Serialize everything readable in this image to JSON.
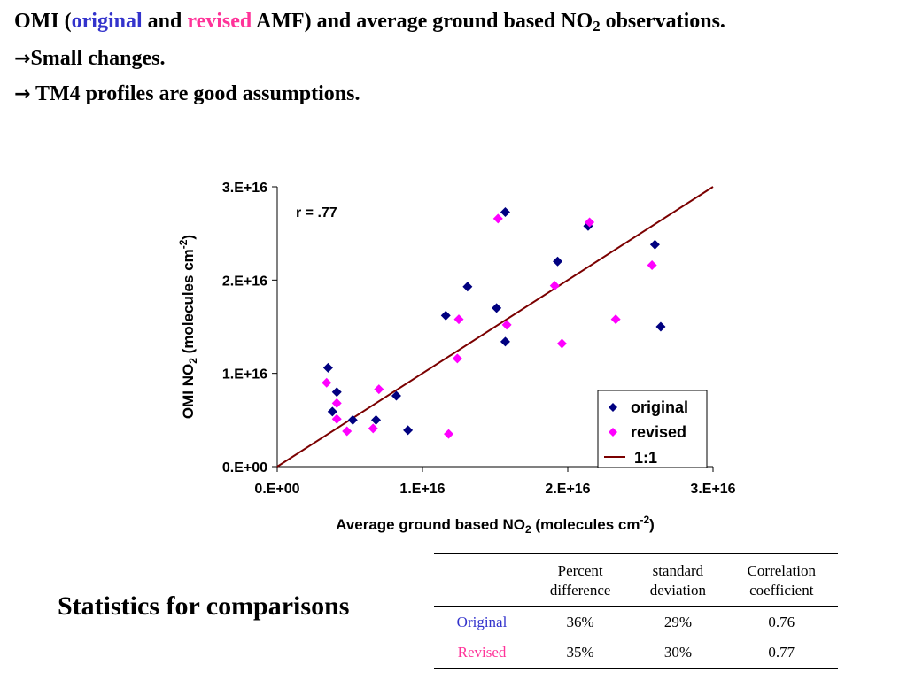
{
  "headline": {
    "line1": {
      "pre": "OMI (",
      "original": "original",
      "and": " and ",
      "revised": "revised",
      "post": " AMF) and average ground based NO",
      "sub": "2",
      "end": " observations."
    },
    "line2": "Small changes.",
    "line3": " TM4 profiles are good assumptions.",
    "arrow": "→",
    "colors": {
      "original": "#3333cc",
      "revised": "#ff3399"
    }
  },
  "chart_data": {
    "type": "scatter",
    "annotation": "r = .77",
    "xlim": [
      0,
      3e+16
    ],
    "ylim": [
      0,
      3e+16
    ],
    "x_ticks": [
      "0.E+00",
      "1.E+16",
      "2.E+16",
      "3.E+16"
    ],
    "y_ticks": [
      "0.E+00",
      "1.E+16",
      "2.E+16",
      "3.E+16"
    ],
    "xlabel": {
      "pre": "Average ground based NO",
      "sub": "2",
      "mid": " (molecules cm",
      "sup": "-2",
      "end": ")"
    },
    "ylabel": {
      "pre": "OMI NO",
      "sub": "2",
      "mid": " (molecules cm",
      "sup": "-2",
      "end": ")"
    },
    "legend_position": "bottom-right",
    "series": [
      {
        "name": "original",
        "color": "#000080",
        "marker": "diamond",
        "points": [
          [
            3500000000000000.0,
            1.06e+16
          ],
          [
            3800000000000000.0,
            5900000000000000.0
          ],
          [
            4100000000000000.0,
            8000000000000000.0
          ],
          [
            5200000000000000.0,
            5000000000000000.0
          ],
          [
            6800000000000000.0,
            5000000000000000.0
          ],
          [
            8200000000000000.0,
            7600000000000000.0
          ],
          [
            9000000000000000.0,
            3900000000000000.0
          ],
          [
            1.16e+16,
            1.62e+16
          ],
          [
            1.31e+16,
            1.93e+16
          ],
          [
            1.51e+16,
            1.7e+16
          ],
          [
            1.57e+16,
            2.73e+16
          ],
          [
            1.57e+16,
            1.34e+16
          ],
          [
            1.93e+16,
            2.2e+16
          ],
          [
            2.14e+16,
            2.58e+16
          ],
          [
            2.6e+16,
            2.38e+16
          ],
          [
            2.64e+16,
            1.5e+16
          ]
        ]
      },
      {
        "name": "revised",
        "color": "#ff00ff",
        "marker": "diamond",
        "points": [
          [
            3400000000000000.0,
            9000000000000000.0
          ],
          [
            4100000000000000.0,
            6800000000000000.0
          ],
          [
            4100000000000000.0,
            5100000000000000.0
          ],
          [
            4800000000000000.0,
            3800000000000000.0
          ],
          [
            6600000000000000.0,
            4100000000000000.0
          ],
          [
            7000000000000000.0,
            8300000000000000.0
          ],
          [
            1.18e+16,
            3500000000000000.0
          ],
          [
            1.24e+16,
            1.16e+16
          ],
          [
            1.25e+16,
            1.58e+16
          ],
          [
            1.52e+16,
            2.66e+16
          ],
          [
            1.58e+16,
            1.52e+16
          ],
          [
            1.91e+16,
            1.94e+16
          ],
          [
            1.96e+16,
            1.32e+16
          ],
          [
            2.15e+16,
            2.62e+16
          ],
          [
            2.33e+16,
            1.58e+16
          ],
          [
            2.58e+16,
            2.16e+16
          ]
        ]
      }
    ],
    "reference_line": {
      "name": "1:1",
      "color": "#7b0000",
      "from": [
        0,
        0
      ],
      "to": [
        3e+16,
        3e+16
      ]
    }
  },
  "stats": {
    "title": "Statistics for comparisons",
    "headers": [
      {
        "l1": "",
        "l2": ""
      },
      {
        "l1": "Percent",
        "l2": "difference"
      },
      {
        "l1": "standard",
        "l2": "deviation"
      },
      {
        "l1": "Correlation",
        "l2": "coefficient"
      }
    ],
    "rows": [
      {
        "label": "Original",
        "color": "#3333cc",
        "values": [
          "36%",
          "29%",
          "0.76"
        ]
      },
      {
        "label": "Revised",
        "color": "#ff3399",
        "values": [
          "35%",
          "30%",
          "0.77"
        ]
      }
    ]
  }
}
